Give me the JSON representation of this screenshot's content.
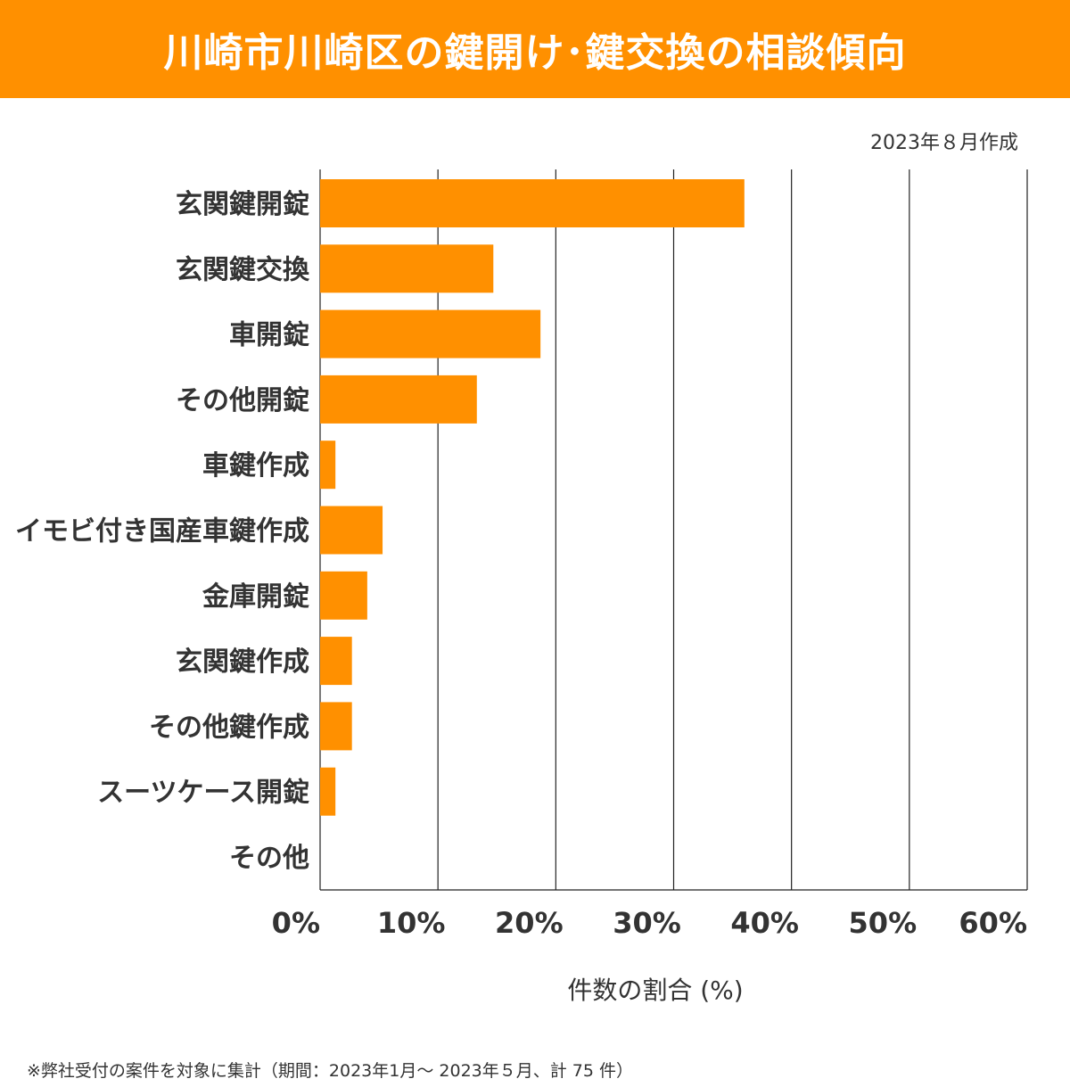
{
  "header": {
    "title": "川崎市川崎区の鍵開け･鍵交換の相談傾向"
  },
  "created": "2023年８月作成",
  "colors": {
    "accent": "#ff9000",
    "bar": "#ff9000",
    "text": "#333333",
    "grid": "#222222"
  },
  "chart_data": {
    "type": "bar",
    "orientation": "horizontal",
    "title": "川崎市川崎区の鍵開け･鍵交換の相談傾向",
    "xlabel": "件数の割合 (%)",
    "ylabel": "",
    "xlim": [
      0,
      60
    ],
    "grid": true,
    "xticks": [
      "0%",
      "10%",
      "20%",
      "30%",
      "40%",
      "50%",
      "60%"
    ],
    "xtick_values": [
      0,
      10,
      20,
      30,
      40,
      50,
      60
    ],
    "categories": [
      "玄関鍵開錠",
      "玄関鍵交換",
      "車開錠",
      "その他開錠",
      "車鍵作成",
      "イモビ付き国産車鍵作成",
      "金庫開錠",
      "玄関鍵作成",
      "その他鍵作成",
      "スーツケース開錠",
      "その他"
    ],
    "values": [
      36.0,
      14.7,
      18.7,
      13.3,
      1.3,
      5.3,
      4.0,
      2.7,
      2.7,
      1.3,
      0
    ]
  },
  "footnote": "※弊社受付の案件を対象に集計（期間：2023年1月～ 2023年５月、計 75 件）"
}
